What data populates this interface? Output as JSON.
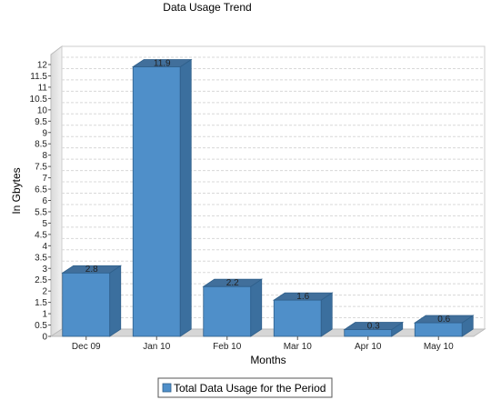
{
  "chart_data": {
    "type": "bar",
    "title": "Data Usage Trend",
    "xlabel": "Months",
    "ylabel": "In Gbytes",
    "categories": [
      "Dec 09",
      "Jan 10",
      "Feb 10",
      "Mar 10",
      "Apr 10",
      "May 10"
    ],
    "series": [
      {
        "name": "Total Data Usage for the Period",
        "values": [
          2.8,
          11.9,
          2.2,
          1.6,
          0.3,
          0.6
        ],
        "labels": [
          "2.8",
          "11.9",
          "2.2",
          "1.6",
          "0.3",
          "0.6"
        ],
        "color": "#4f8fc9"
      }
    ],
    "ylim": [
      0,
      12
    ],
    "ytick_step": 0.5,
    "yticks": [
      "0",
      "0.5",
      "1",
      "1.5",
      "2",
      "2.5",
      "3",
      "3.5",
      "4",
      "4.5",
      "5",
      "5.5",
      "6",
      "6.5",
      "7",
      "7.5",
      "8",
      "8.5",
      "9",
      "9.5",
      "10",
      "10.5",
      "11",
      "11.5",
      "12"
    ],
    "grid": true,
    "style": "3d",
    "legend_position": "bottom"
  }
}
